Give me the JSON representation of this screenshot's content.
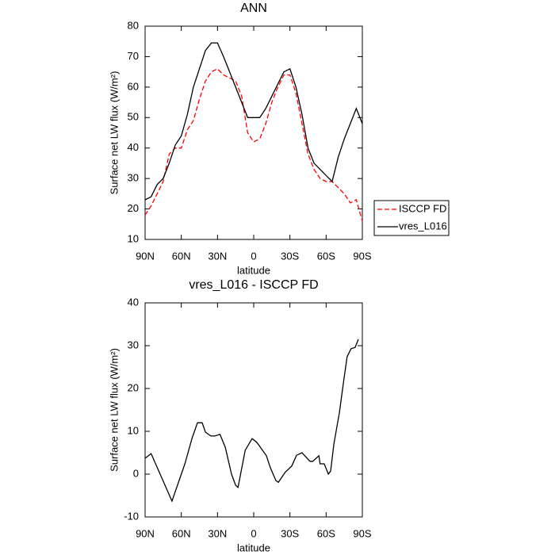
{
  "chart_data": [
    {
      "type": "line",
      "title": "ANN",
      "x_label": "latitude",
      "y_label": "Surface net LW flux (W/m²)",
      "x": [
        90,
        85,
        80,
        75,
        70,
        65,
        60,
        55,
        50,
        45,
        40,
        35,
        30,
        25,
        20,
        15,
        10,
        5,
        0,
        -5,
        -10,
        -15,
        -20,
        -25,
        -30,
        -35,
        -40,
        -45,
        -50,
        -55,
        -60,
        -65,
        -70,
        -75,
        -80,
        -85,
        -90
      ],
      "series": [
        {
          "name": "ISCCP FD",
          "color": "#ff0000",
          "style": "dashed",
          "values": [
            18,
            21,
            25,
            29,
            38,
            40,
            40,
            46,
            49,
            56,
            62,
            65,
            66,
            64,
            63,
            62,
            57,
            45,
            42,
            43,
            48,
            55,
            60,
            64,
            64,
            58,
            48,
            38,
            33,
            30,
            29,
            29,
            27,
            25,
            22,
            23,
            16
          ]
        },
        {
          "name": "vres_L016",
          "color": "#000000",
          "style": "solid",
          "values": [
            23,
            24,
            28,
            30,
            35,
            41,
            44,
            51,
            60,
            66,
            72,
            74.5,
            74.5,
            70,
            65,
            60,
            55,
            50,
            50,
            50,
            53,
            57,
            61,
            65,
            66,
            60,
            51,
            40,
            35,
            33,
            31,
            29,
            37,
            43,
            48,
            53,
            48
          ]
        }
      ],
      "xlim": [
        90,
        -90
      ],
      "xticks": [
        {
          "value": 90,
          "label": "90N"
        },
        {
          "value": 60,
          "label": "60N"
        },
        {
          "value": 30,
          "label": "30N"
        },
        0,
        {
          "value": -30,
          "label": "30S"
        },
        {
          "value": -60,
          "label": "60S"
        },
        {
          "value": -90,
          "label": "90S"
        }
      ],
      "ylim": [
        10,
        80
      ],
      "yticks": [
        10,
        20,
        30,
        40,
        50,
        60,
        70,
        80
      ],
      "legend": "right"
    },
    {
      "type": "line",
      "title": "vres_L016 - ISCCP FD",
      "x_label": "latitude",
      "y_label": "Surface net LW flux (W/m²)",
      "x": [
        90,
        85,
        67.7,
        57,
        51,
        46.6,
        42.7,
        40,
        35.5,
        32,
        28,
        23.6,
        18.4,
        15,
        13,
        7,
        1.3,
        -2.6,
        -10.5,
        -13.8,
        -18.4,
        -20.4,
        -26,
        -31.5,
        -35.5,
        -40,
        -46.6,
        -49,
        -54,
        -55,
        -58.5,
        -61.8,
        -63.7,
        -66.4,
        -71,
        -74.2,
        -77.4,
        -80.7,
        -84,
        -86.7
      ],
      "series": [
        {
          "name": "vres_L016 - ISCCP FD",
          "color": "#000000",
          "style": "solid",
          "values": [
            3.7,
            4.8,
            -6.3,
            2.4,
            8.5,
            12,
            12,
            9.8,
            8.9,
            8.9,
            9.3,
            6.3,
            0,
            -2.6,
            -3.1,
            5.6,
            8.3,
            7.4,
            4.3,
            1.5,
            -1.5,
            -1.9,
            0.4,
            1.9,
            4.4,
            5,
            3,
            3,
            4.3,
            2.4,
            2.4,
            0,
            0.7,
            7,
            14.4,
            21,
            27.4,
            29.3,
            29.6,
            31.5
          ]
        }
      ],
      "xlim": [
        90,
        -90
      ],
      "xticks": [
        {
          "value": 90,
          "label": "90N"
        },
        {
          "value": 60,
          "label": "60N"
        },
        {
          "value": 30,
          "label": "30N"
        },
        0,
        {
          "value": -30,
          "label": "30S"
        },
        {
          "value": -60,
          "label": "60S"
        },
        {
          "value": -90,
          "label": "90S"
        }
      ],
      "ylim": [
        -10,
        40
      ],
      "yticks": [
        -10,
        0,
        10,
        20,
        30,
        40
      ]
    }
  ]
}
